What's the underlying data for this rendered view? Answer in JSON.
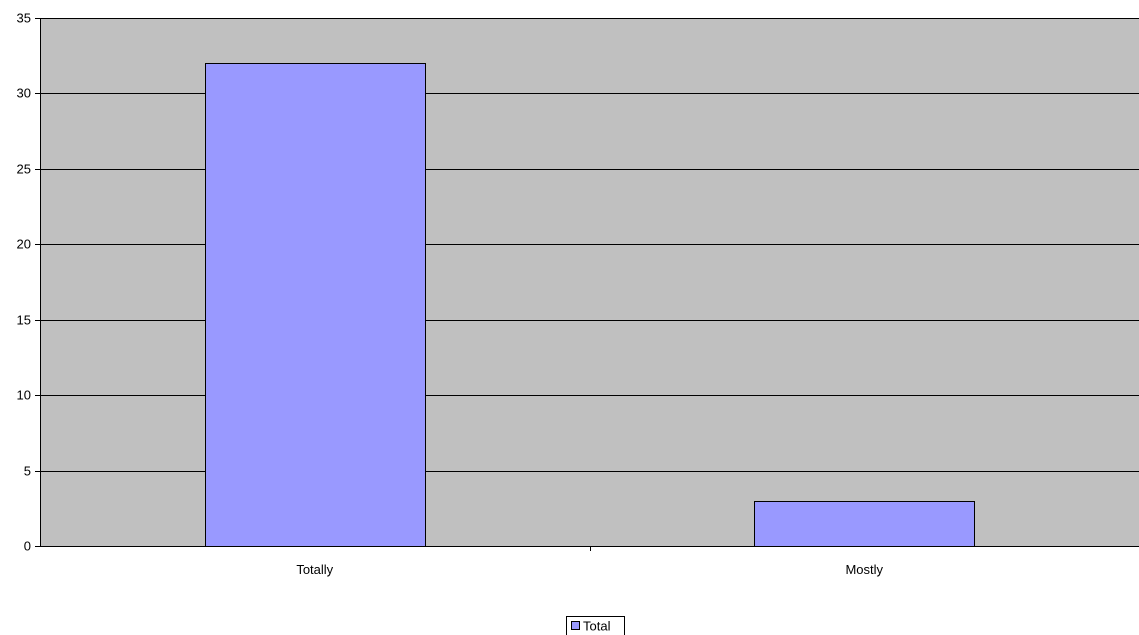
{
  "chart_data": {
    "type": "bar",
    "categories": [
      "Totally",
      "Mostly"
    ],
    "series": [
      {
        "name": "Total",
        "values": [
          32,
          3
        ],
        "color": "#9999ff"
      }
    ],
    "ylim": [
      0,
      35
    ],
    "yticks": [
      0,
      5,
      10,
      15,
      20,
      25,
      30,
      35
    ],
    "grid": true,
    "legend": "bottom-center",
    "plot_background": "#c0c0c0",
    "gridline_color": "#000000",
    "bar_border_color": "#000000"
  }
}
